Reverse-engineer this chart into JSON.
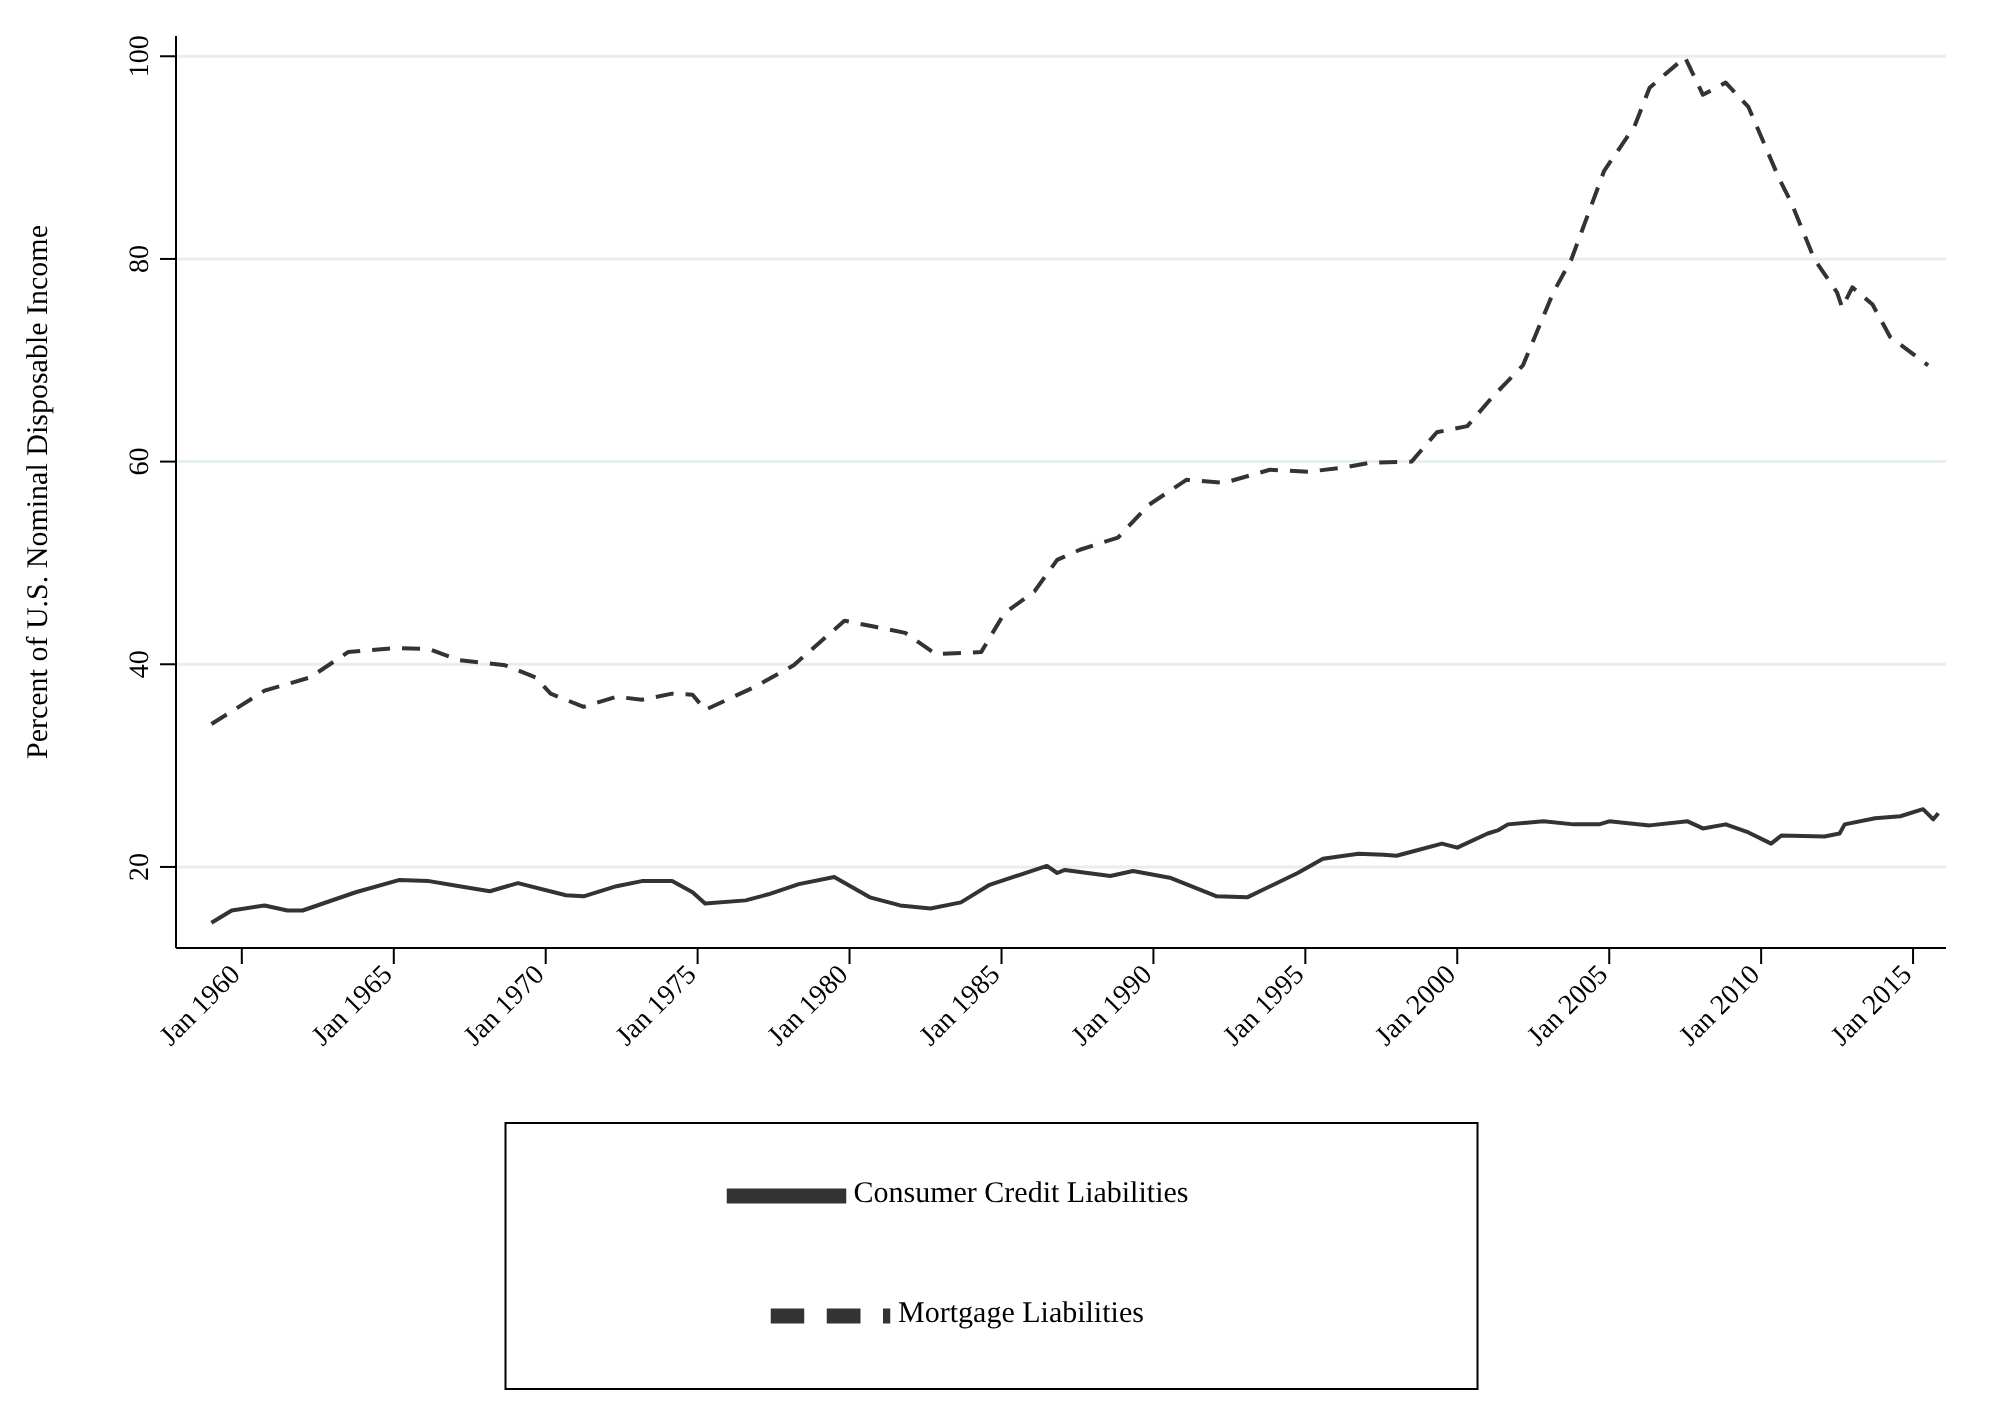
{
  "chart_data": {
    "type": "line",
    "ylabel": "Percent of U.S. Nominal Disposable Income",
    "xlim": [
      "1957-11",
      "2016-02"
    ],
    "ylim": [
      12,
      102
    ],
    "xticks": [
      {
        "value": "1960-01",
        "label": "Jan 1960"
      },
      {
        "value": "1965-01",
        "label": "Jan 1965"
      },
      {
        "value": "1970-01",
        "label": "Jan 1970"
      },
      {
        "value": "1975-01",
        "label": "Jan 1975"
      },
      {
        "value": "1980-01",
        "label": "Jan 1980"
      },
      {
        "value": "1985-01",
        "label": "Jan 1985"
      },
      {
        "value": "1990-01",
        "label": "Jan 1990"
      },
      {
        "value": "1995-01",
        "label": "Jan 1995"
      },
      {
        "value": "2000-01",
        "label": "Jan 2000"
      },
      {
        "value": "2005-01",
        "label": "Jan 2005"
      },
      {
        "value": "2010-01",
        "label": "Jan 2010"
      },
      {
        "value": "2015-01",
        "label": "Jan 2015"
      }
    ],
    "yticks": [
      20,
      40,
      60,
      80,
      100
    ],
    "grid": "y",
    "legend": "bottom",
    "marker": "none",
    "series": [
      {
        "name": "Consumer Credit Liabilities",
        "color": "#333333",
        "line_style": "solid",
        "x": [
          "1959-01",
          "1959-09",
          "1960-10",
          "1961-07",
          "1962-01",
          "1963-10",
          "1965-03",
          "1966-03",
          "1967-03",
          "1968-03",
          "1969-02",
          "1970-09",
          "1971-04",
          "1972-05",
          "1973-03",
          "1974-03",
          "1974-11",
          "1975-04",
          "1976-08",
          "1977-05",
          "1978-05",
          "1979-07",
          "1980-09",
          "1981-09",
          "1982-09",
          "1983-09",
          "1984-08",
          "1985-08",
          "1986-07",
          "1986-11",
          "1987-02",
          "1988-08",
          "1989-05",
          "1990-08",
          "1992-02",
          "1993-02",
          "1994-10",
          "1995-08",
          "1996-10",
          "1997-08",
          "1998-01",
          "1998-07",
          "1999-07",
          "2000-01",
          "2001-01",
          "2001-05",
          "2001-09",
          "2002-11",
          "2003-11",
          "2004-09",
          "2005-01",
          "2006-05",
          "2007-08",
          "2008-02",
          "2008-11",
          "2009-08",
          "2010-05",
          "2010-09",
          "2012-02",
          "2012-08",
          "2012-10",
          "2013-10",
          "2014-08",
          "2015-05",
          "2015-09",
          "2015-11"
        ],
        "values": [
          14.5,
          15.7,
          16.2,
          15.7,
          15.7,
          17.5,
          18.7,
          18.6,
          18.1,
          17.6,
          18.4,
          17.2,
          17.1,
          18.1,
          18.6,
          18.6,
          17.5,
          16.4,
          16.7,
          17.3,
          18.3,
          19.0,
          17.0,
          16.2,
          15.9,
          16.5,
          18.2,
          19.2,
          20.1,
          19.4,
          19.7,
          19.1,
          19.6,
          18.9,
          17.1,
          17.0,
          19.4,
          20.8,
          21.3,
          21.2,
          21.1,
          21.5,
          22.3,
          21.9,
          23.3,
          23.6,
          24.2,
          24.5,
          24.2,
          24.2,
          24.5,
          24.1,
          24.5,
          23.8,
          24.2,
          23.4,
          22.3,
          23.1,
          23.0,
          23.3,
          24.2,
          24.8,
          25.0,
          25.7,
          24.7,
          25.3
        ]
      },
      {
        "name": "Mortgage Liabilities",
        "color": "#333333",
        "line_style": "dashed",
        "x": [
          "1959-01",
          "1960-10",
          "1962-04",
          "1963-07",
          "1965-01",
          "1966-03",
          "1967-03",
          "1968-09",
          "1969-09",
          "1970-03",
          "1971-04",
          "1972-05",
          "1973-03",
          "1974-03",
          "1974-11",
          "1975-04",
          "1976-11",
          "1978-03",
          "1979-11",
          "1980-11",
          "1981-11",
          "1982-11",
          "1984-05",
          "1985-02",
          "1986-02",
          "1986-11",
          "1987-08",
          "1988-11",
          "1989-11",
          "1991-02",
          "1992-05",
          "1993-11",
          "1995-02",
          "1996-04",
          "1997-03",
          "1998-07",
          "1999-05",
          "2000-05",
          "2001-03",
          "2002-03",
          "2003-03",
          "2003-10",
          "2004-11",
          "2005-11",
          "2006-05",
          "2007-07",
          "2008-02",
          "2008-11",
          "2009-08",
          "2010-08",
          "2011-01",
          "2011-10",
          "2012-07",
          "2012-09",
          "2013-01",
          "2013-09",
          "2014-04",
          "2015-07"
        ],
        "values": [
          34.1,
          37.4,
          38.7,
          41.2,
          41.6,
          41.5,
          40.4,
          39.9,
          38.7,
          37.1,
          35.8,
          36.8,
          36.5,
          37.1,
          37.0,
          35.5,
          37.7,
          39.9,
          44.3,
          43.7,
          43.1,
          41.0,
          41.2,
          45.0,
          47.2,
          50.3,
          51.3,
          52.5,
          55.7,
          58.2,
          57.9,
          59.2,
          59.0,
          59.4,
          59.9,
          60.0,
          62.9,
          63.5,
          66.4,
          69.5,
          76.7,
          79.9,
          88.7,
          93.1,
          96.9,
          99.9,
          96.2,
          97.4,
          95.0,
          88.0,
          85.5,
          80.0,
          76.7,
          75.2,
          77.2,
          75.5,
          72.3,
          69.5
        ]
      }
    ]
  }
}
